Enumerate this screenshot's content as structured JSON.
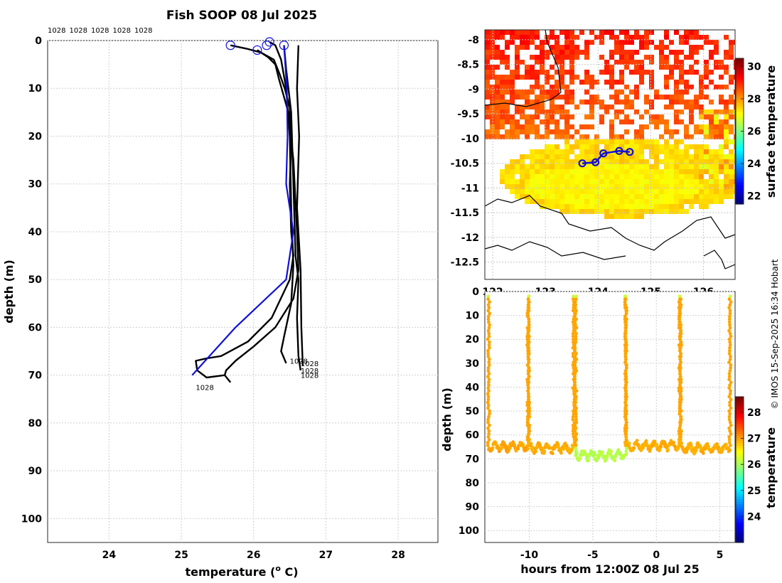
{
  "chart_data": [
    {
      "type": "line",
      "title": "Fish SOOP 08 Jul 2025",
      "xlabel": "temperature (",
      "xlabel_sup": "o",
      "xlabel_end": " C)",
      "ylabel": "depth (m)",
      "xlim": [
        23.15,
        28.55
      ],
      "ylim": [
        0,
        105
      ],
      "xticks": [
        "24",
        "25",
        "26",
        "27",
        "28"
      ],
      "yticks": [
        "0",
        "10",
        "20",
        "30",
        "40",
        "50",
        "60",
        "70",
        "80",
        "90",
        "100"
      ],
      "top_labels": [
        "1028",
        "1028",
        "1028",
        "1028",
        "1028"
      ],
      "end_labels": [
        "1028",
        "1028",
        "1028",
        "1028",
        "1028"
      ],
      "series": [
        {
          "name": "profile-1",
          "color": "#000000",
          "points": [
            [
              25.68,
              1
            ],
            [
              25.9,
              1.7
            ],
            [
              26.1,
              2.5
            ],
            [
              26.28,
              4
            ],
            [
              26.36,
              7
            ],
            [
              26.43,
              10
            ],
            [
              26.5,
              14
            ],
            [
              26.52,
              22
            ],
            [
              26.5,
              30
            ],
            [
              26.52,
              40
            ],
            [
              26.55,
              45
            ],
            [
              26.5,
              50
            ],
            [
              26.25,
              58
            ],
            [
              25.92,
              63
            ],
            [
              25.55,
              66
            ],
            [
              25.35,
              66.5
            ],
            [
              25.2,
              67
            ],
            [
              25.22,
              69
            ],
            [
              25.35,
              70.5
            ],
            [
              25.6,
              70
            ],
            [
              25.68,
              71.5
            ]
          ]
        },
        {
          "name": "profile-2",
          "color": "#000000",
          "points": [
            [
              26.05,
              2
            ],
            [
              26.2,
              3.5
            ],
            [
              26.3,
              5
            ],
            [
              26.35,
              8
            ],
            [
              26.48,
              15
            ],
            [
              26.55,
              25
            ],
            [
              26.6,
              40
            ],
            [
              26.62,
              48
            ],
            [
              26.55,
              54
            ],
            [
              26.3,
              60
            ],
            [
              26.0,
              64
            ],
            [
              25.75,
              67
            ],
            [
              25.62,
              69
            ],
            [
              25.6,
              70
            ]
          ]
        },
        {
          "name": "profile-3",
          "color": "#000000",
          "points": [
            [
              26.22,
              0.3
            ],
            [
              26.3,
              1
            ],
            [
              26.38,
              4
            ],
            [
              26.45,
              10
            ],
            [
              26.5,
              20
            ],
            [
              26.52,
              35
            ],
            [
              26.55,
              47
            ],
            [
              26.52,
              55
            ],
            [
              26.42,
              62
            ],
            [
              26.38,
              65
            ],
            [
              26.45,
              67.5
            ]
          ]
        },
        {
          "name": "profile-4",
          "color": "#000000",
          "points": [
            [
              26.42,
              1
            ],
            [
              26.45,
              6
            ],
            [
              26.52,
              15
            ],
            [
              26.55,
              30
            ],
            [
              26.58,
              45
            ],
            [
              26.62,
              50
            ],
            [
              26.6,
              58
            ],
            [
              26.62,
              66
            ],
            [
              26.65,
              69
            ]
          ]
        },
        {
          "name": "profile-5",
          "color": "#000000",
          "points": [
            [
              26.62,
              1
            ],
            [
              26.6,
              10
            ],
            [
              26.63,
              20
            ],
            [
              26.6,
              35
            ],
            [
              26.65,
              48
            ],
            [
              26.66,
              60
            ],
            [
              26.68,
              68
            ]
          ]
        },
        {
          "name": "mean-profile",
          "color": "#1010d8",
          "points": [
            [
              26.42,
              1
            ],
            [
              26.46,
              10
            ],
            [
              26.47,
              20
            ],
            [
              26.45,
              30
            ],
            [
              26.55,
              40
            ],
            [
              26.45,
              50
            ],
            [
              25.75,
              60
            ],
            [
              25.45,
              65
            ],
            [
              25.15,
              70
            ]
          ]
        }
      ],
      "markers": [
        [
          25.68,
          1
        ],
        [
          26.05,
          2
        ],
        [
          26.22,
          0.3
        ],
        [
          26.18,
          1
        ],
        [
          26.42,
          1
        ]
      ]
    },
    {
      "type": "heatmap",
      "colorbar_label": "surface temperature",
      "colorbar_ticks": [
        "22",
        "24",
        "26",
        "28",
        "30"
      ],
      "colorbar_range": [
        21.5,
        30.5
      ],
      "xlim": [
        121.85,
        126.6
      ],
      "ylim": [
        -12.85,
        -7.8
      ],
      "xticks": [
        "122",
        "123",
        "124",
        "125",
        "126"
      ],
      "yticks": [
        "-8",
        "-8.5",
        "-9",
        "-9.5",
        "-10",
        "-10.5",
        "-11",
        "-11.5",
        "-12",
        "-12.5"
      ],
      "track": [
        [
          123.7,
          -10.5
        ],
        [
          123.95,
          -10.48
        ],
        [
          124.1,
          -10.3
        ],
        [
          124.4,
          -10.25
        ],
        [
          124.6,
          -10.27
        ]
      ]
    },
    {
      "type": "scatter",
      "xlabel": "hours from 12:00Z 08 Jul 25",
      "ylabel": "depth (m)",
      "colorbar_label": "temperature",
      "colorbar_ticks": [
        "24",
        "25",
        "26",
        "27",
        "28"
      ],
      "colorbar_range": [
        23,
        28.6
      ],
      "xlim": [
        -13.5,
        6.2
      ],
      "ylim": [
        0,
        105
      ],
      "xticks": [
        "-10",
        "-5",
        "0",
        "5"
      ],
      "yticks": [
        "0",
        "10",
        "20",
        "30",
        "40",
        "50",
        "60",
        "70",
        "80",
        "90",
        "100"
      ],
      "casts": [
        {
          "t0": -13.3,
          "t1": -10.2,
          "down_t": -13.2,
          "up_t": -10.1,
          "depth": 65,
          "temp": 27.0
        },
        {
          "t0": -10.1,
          "t1": -6.5,
          "down_t": -10.05,
          "up_t": -6.5,
          "depth": 65.5,
          "temp": 26.95
        },
        {
          "t0": -6.5,
          "t1": -2.4,
          "down_t": -6.35,
          "up_t": -2.4,
          "depth": 68.5,
          "temp": 26.1
        },
        {
          "t0": -2.4,
          "t1": 1.8,
          "down_t": -2.4,
          "up_t": 1.85,
          "depth": 64.5,
          "temp": 26.95
        },
        {
          "t0": 1.85,
          "t1": 5.8,
          "down_t": 1.9,
          "up_t": 5.8,
          "depth": 65.5,
          "temp": 26.95
        }
      ]
    }
  ],
  "credit": "© IMOS 15-Sep-2025 16:34 Hobart"
}
